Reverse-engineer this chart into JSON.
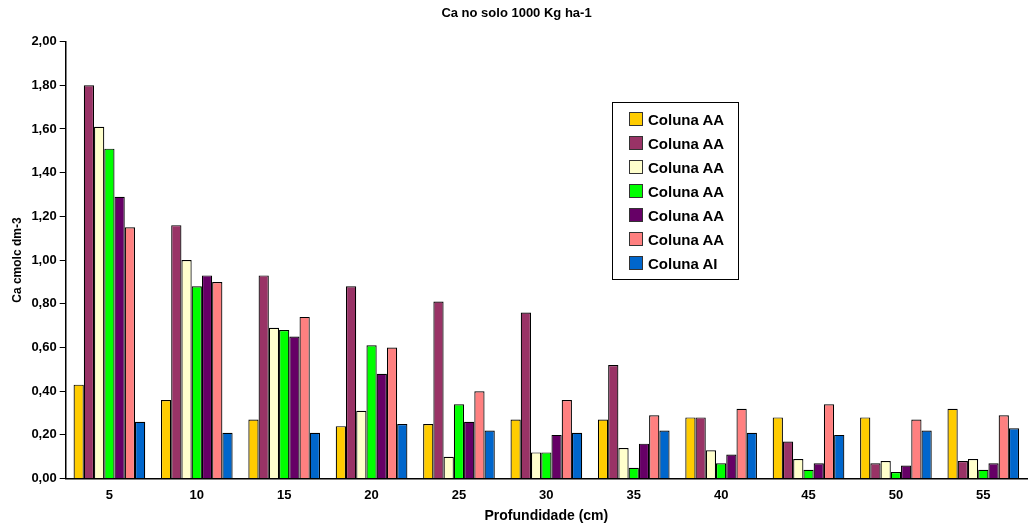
{
  "chart_data": {
    "type": "bar",
    "title": "Ca no solo 1000 Kg ha-1",
    "xlabel": "Profundidade (cm)",
    "ylabel": "Ca cmolc dm-3",
    "categories": [
      "5",
      "10",
      "15",
      "20",
      "25",
      "30",
      "35",
      "40",
      "45",
      "50",
      "55"
    ],
    "series": [
      {
        "name": "Coluna AA",
        "color": "#ffcc00",
        "values": [
          0.43,
          0.36,
          0.27,
          0.24,
          0.25,
          0.27,
          0.27,
          0.28,
          0.28,
          0.28,
          0.32
        ]
      },
      {
        "name": "Coluna AA",
        "color": "#993366",
        "values": [
          1.8,
          1.16,
          0.93,
          0.88,
          0.81,
          0.76,
          0.52,
          0.28,
          0.17,
          0.07,
          0.08
        ]
      },
      {
        "name": "Coluna AA",
        "color": "#ffffcc",
        "values": [
          1.61,
          1.0,
          0.69,
          0.31,
          0.1,
          0.12,
          0.14,
          0.13,
          0.09,
          0.08,
          0.09
        ]
      },
      {
        "name": "Coluna AA",
        "color": "#00ff00",
        "values": [
          1.51,
          0.88,
          0.68,
          0.61,
          0.34,
          0.12,
          0.05,
          0.07,
          0.04,
          0.03,
          0.04
        ]
      },
      {
        "name": "Coluna AA",
        "color": "#660066",
        "values": [
          1.29,
          0.93,
          0.65,
          0.48,
          0.26,
          0.2,
          0.16,
          0.11,
          0.07,
          0.06,
          0.07
        ]
      },
      {
        "name": "Coluna AA",
        "color": "#ff8080",
        "values": [
          1.15,
          0.9,
          0.74,
          0.6,
          0.4,
          0.36,
          0.29,
          0.32,
          0.34,
          0.27,
          0.29
        ]
      },
      {
        "name": "Coluna AI",
        "color": "#0066cc",
        "values": [
          0.26,
          0.21,
          0.21,
          0.25,
          0.22,
          0.21,
          0.22,
          0.21,
          0.2,
          0.22,
          0.23
        ]
      }
    ],
    "ylim": [
      0,
      2
    ],
    "yticks": [
      {
        "value": 0,
        "label": "0,00"
      },
      {
        "value": 0.2,
        "label": "0,20"
      },
      {
        "value": 0.4,
        "label": "0,40"
      },
      {
        "value": 0.6,
        "label": "0,60"
      },
      {
        "value": 0.8,
        "label": "0,80"
      },
      {
        "value": 1,
        "label": "1,00"
      },
      {
        "value": 1.2,
        "label": "1,20"
      },
      {
        "value": 1.4,
        "label": "1,40"
      },
      {
        "value": 1.6,
        "label": "1,60"
      },
      {
        "value": 1.8,
        "label": "1,80"
      },
      {
        "value": 2,
        "label": "2,00"
      }
    ],
    "grid": false,
    "legend": "top right"
  }
}
